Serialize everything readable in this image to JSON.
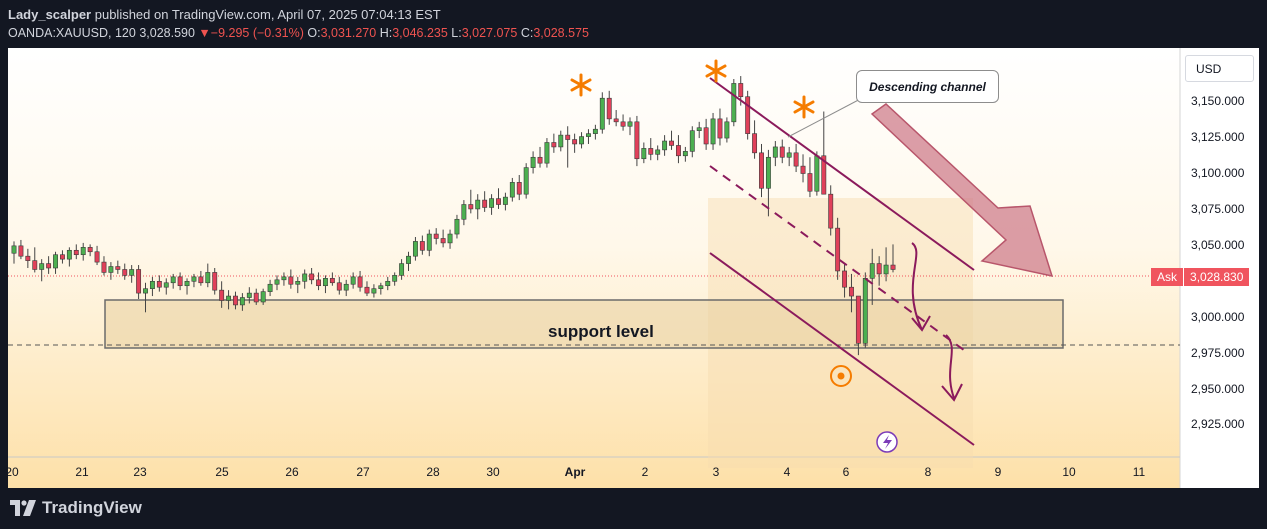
{
  "header": {
    "author": "Lady_scalper",
    "published_text": "published on TradingView.com, April 07, 2025 07:04:13 EST",
    "symbol": "OANDA:XAUUSD, 120",
    "last": "3,028.590",
    "change": "−9.295 (−0.31%)",
    "o_label": "O:",
    "o_value": "3,031.270",
    "h_label": "H:",
    "h_value": "3,046.235",
    "l_label": "L:",
    "l_value": "3,027.075",
    "c_label": "C:",
    "c_value": "3,028.575"
  },
  "currency_button": "USD",
  "ask": {
    "label": "Ask",
    "value": "3,028.830"
  },
  "annotations": {
    "callout": "Descending channel",
    "support": "support level"
  },
  "footer": {
    "brand": "TradingView"
  },
  "colors": {
    "up": "#4caf50",
    "down": "#e0405a",
    "channel": "#8b1a5c",
    "star": "#f57c00",
    "background": "#131722"
  },
  "chart_data": {
    "type": "candlestick",
    "y_ticks": [
      "3,150.000",
      "3,125.000",
      "3,100.000",
      "3,075.000",
      "3,050.000",
      "3,000.000",
      "2,975.000",
      "2,950.000",
      "2,925.000"
    ],
    "y_tick_values": [
      3150,
      3125,
      3100,
      3075,
      3050,
      3000,
      2975,
      2950,
      2925
    ],
    "x_ticks": [
      "20",
      "21",
      "23",
      "25",
      "26",
      "27",
      "28",
      "30",
      "Apr",
      "2",
      "3",
      "4",
      "6",
      "8",
      "9",
      "10",
      "11"
    ],
    "ylim": [
      2902,
      3179
    ],
    "support_zone": [
      2977,
      3011
    ],
    "dashed_level": 2980,
    "ask_level": 3028.83,
    "series": [
      [
        3040,
        3048,
        3033,
        3045
      ],
      [
        3045,
        3049,
        3036,
        3038
      ],
      [
        3038,
        3043,
        3030,
        3035
      ],
      [
        3035,
        3044,
        3027,
        3029
      ],
      [
        3029,
        3036,
        3021,
        3033
      ],
      [
        3033,
        3038,
        3026,
        3030
      ],
      [
        3030,
        3041,
        3026,
        3039
      ],
      [
        3039,
        3042,
        3033,
        3036
      ],
      [
        3036,
        3044,
        3031,
        3042
      ],
      [
        3042,
        3046,
        3036,
        3039
      ],
      [
        3039,
        3047,
        3035,
        3044
      ],
      [
        3044,
        3046,
        3038,
        3041
      ],
      [
        3041,
        3045,
        3032,
        3034
      ],
      [
        3034,
        3038,
        3025,
        3027
      ],
      [
        3027,
        3034,
        3022,
        3031
      ],
      [
        3031,
        3035,
        3026,
        3029
      ],
      [
        3029,
        3033,
        3022,
        3025
      ],
      [
        3025,
        3032,
        3020,
        3029
      ],
      [
        3029,
        3032,
        3009,
        3013
      ],
      [
        3013,
        3020,
        3000,
        3016
      ],
      [
        3016,
        3024,
        3011,
        3021
      ],
      [
        3021,
        3025,
        3014,
        3017
      ],
      [
        3017,
        3023,
        3012,
        3020
      ],
      [
        3020,
        3026,
        3016,
        3024
      ],
      [
        3024,
        3027,
        3015,
        3018
      ],
      [
        3018,
        3023,
        3012,
        3021
      ],
      [
        3021,
        3026,
        3017,
        3024
      ],
      [
        3024,
        3028,
        3018,
        3020
      ],
      [
        3020,
        3033,
        3017,
        3027
      ],
      [
        3027,
        3030,
        3012,
        3015
      ],
      [
        3015,
        3021,
        3003,
        3008
      ],
      [
        3008,
        3015,
        3002,
        3011
      ],
      [
        3011,
        3014,
        3002,
        3005
      ],
      [
        3005,
        3013,
        3001,
        3010
      ],
      [
        3010,
        3017,
        3006,
        3013
      ],
      [
        3013,
        3016,
        3005,
        3007
      ],
      [
        3007,
        3016,
        3005,
        3014
      ],
      [
        3014,
        3022,
        3011,
        3019
      ],
      [
        3019,
        3025,
        3015,
        3022
      ],
      [
        3022,
        3027,
        3018,
        3024
      ],
      [
        3024,
        3029,
        3016,
        3019
      ],
      [
        3019,
        3024,
        3013,
        3021
      ],
      [
        3021,
        3029,
        3016,
        3026
      ],
      [
        3026,
        3030,
        3019,
        3022
      ],
      [
        3022,
        3027,
        3015,
        3018
      ],
      [
        3018,
        3025,
        3013,
        3023
      ],
      [
        3023,
        3027,
        3018,
        3020
      ],
      [
        3020,
        3024,
        3012,
        3015
      ],
      [
        3015,
        3022,
        3011,
        3019
      ],
      [
        3019,
        3027,
        3016,
        3024
      ],
      [
        3024,
        3028,
        3014,
        3017
      ],
      [
        3017,
        3021,
        3011,
        3013
      ],
      [
        3013,
        3019,
        3010,
        3016
      ],
      [
        3016,
        3020,
        3012,
        3018
      ],
      [
        3018,
        3024,
        3015,
        3021
      ],
      [
        3021,
        3027,
        3018,
        3025
      ],
      [
        3025,
        3036,
        3022,
        3033
      ],
      [
        3033,
        3041,
        3028,
        3038
      ],
      [
        3038,
        3051,
        3035,
        3048
      ],
      [
        3048,
        3052,
        3039,
        3042
      ],
      [
        3042,
        3056,
        3038,
        3053
      ],
      [
        3053,
        3057,
        3046,
        3050
      ],
      [
        3050,
        3056,
        3044,
        3047
      ],
      [
        3047,
        3056,
        3043,
        3053
      ],
      [
        3053,
        3066,
        3050,
        3063
      ],
      [
        3063,
        3076,
        3059,
        3073
      ],
      [
        3073,
        3083,
        3067,
        3070
      ],
      [
        3070,
        3080,
        3063,
        3076
      ],
      [
        3076,
        3082,
        3068,
        3071
      ],
      [
        3071,
        3080,
        3066,
        3077
      ],
      [
        3077,
        3084,
        3070,
        3073
      ],
      [
        3073,
        3081,
        3069,
        3078
      ],
      [
        3078,
        3091,
        3075,
        3088
      ],
      [
        3088,
        3093,
        3076,
        3080
      ],
      [
        3080,
        3101,
        3077,
        3098
      ],
      [
        3098,
        3109,
        3094,
        3105
      ],
      [
        3105,
        3112,
        3098,
        3101
      ],
      [
        3101,
        3118,
        3098,
        3115
      ],
      [
        3115,
        3121,
        3108,
        3112
      ],
      [
        3112,
        3123,
        3109,
        3120
      ],
      [
        3120,
        3126,
        3098,
        3117
      ],
      [
        3117,
        3121,
        3108,
        3114
      ],
      [
        3114,
        3122,
        3111,
        3119
      ],
      [
        3119,
        3124,
        3114,
        3121
      ],
      [
        3121,
        3127,
        3117,
        3124
      ],
      [
        3124,
        3149,
        3121,
        3145
      ],
      [
        3145,
        3150,
        3127,
        3131
      ],
      [
        3131,
        3137,
        3126,
        3129
      ],
      [
        3129,
        3134,
        3123,
        3126
      ],
      [
        3126,
        3132,
        3120,
        3129
      ],
      [
        3129,
        3133,
        3099,
        3104
      ],
      [
        3104,
        3115,
        3101,
        3111
      ],
      [
        3111,
        3118,
        3103,
        3107
      ],
      [
        3107,
        3113,
        3103,
        3110
      ],
      [
        3110,
        3120,
        3106,
        3116
      ],
      [
        3116,
        3123,
        3110,
        3113
      ],
      [
        3113,
        3120,
        3101,
        3106
      ],
      [
        3106,
        3112,
        3102,
        3109
      ],
      [
        3109,
        3126,
        3105,
        3123
      ],
      [
        3123,
        3129,
        3118,
        3125
      ],
      [
        3125,
        3131,
        3110,
        3114
      ],
      [
        3114,
        3135,
        3110,
        3131
      ],
      [
        3131,
        3138,
        3113,
        3118
      ],
      [
        3118,
        3132,
        3115,
        3129
      ],
      [
        3129,
        3158,
        3126,
        3155
      ],
      [
        3155,
        3160,
        3140,
        3146
      ],
      [
        3146,
        3150,
        3117,
        3121
      ],
      [
        3121,
        3130,
        3104,
        3108
      ],
      [
        3108,
        3114,
        3078,
        3084
      ],
      [
        3084,
        3110,
        3065,
        3105
      ],
      [
        3105,
        3116,
        3099,
        3112
      ],
      [
        3112,
        3117,
        3101,
        3105
      ],
      [
        3105,
        3112,
        3099,
        3108
      ],
      [
        3108,
        3114,
        3095,
        3099
      ],
      [
        3099,
        3107,
        3088,
        3094
      ],
      [
        3094,
        3105,
        3078,
        3082
      ],
      [
        3082,
        3109,
        3079,
        3106
      ],
      [
        3106,
        3136,
        3102,
        3080
      ],
      [
        3080,
        3086,
        3052,
        3057
      ],
      [
        3057,
        3064,
        3022,
        3028
      ],
      [
        3028,
        3033,
        3010,
        3017
      ],
      [
        3017,
        3026,
        3000,
        3011
      ],
      [
        3011,
        2990,
        2971,
        2979
      ],
      [
        2979,
        3027,
        2976,
        3023
      ],
      [
        3023,
        3043,
        3005,
        3033
      ],
      [
        3033,
        3038,
        3018,
        3026
      ],
      [
        3026,
        3044,
        3021,
        3032
      ],
      [
        3032,
        3046,
        3027,
        3029
      ]
    ]
  }
}
